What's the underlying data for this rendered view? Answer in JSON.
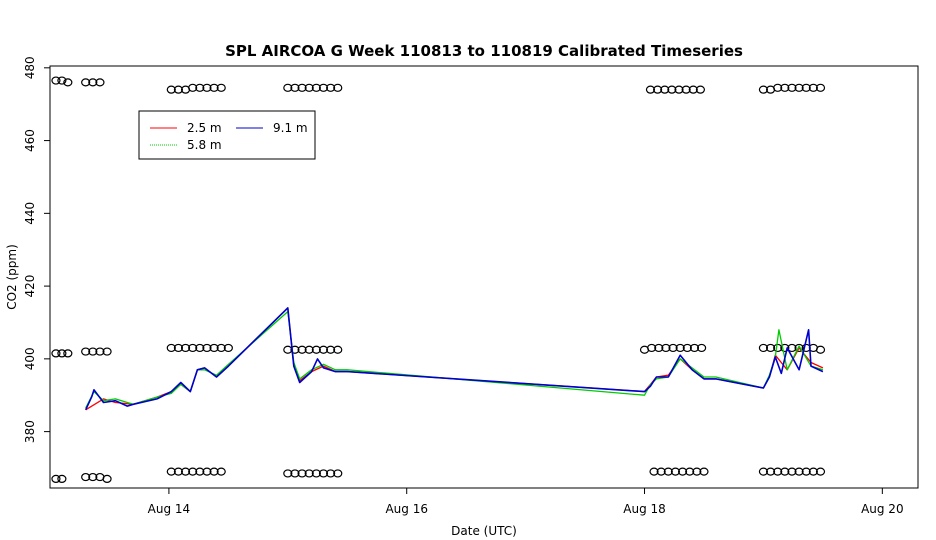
{
  "chart_data": {
    "type": "line",
    "title": "SPL AIRCOA G  Week 110813 to 110819  Calibrated Timeseries",
    "xlabel": "Date (UTC)",
    "ylabel": "CO2 (ppm)",
    "x_unit": "days since Aug 13 00:00 UTC",
    "xlim": [
      0.0,
      7.3
    ],
    "ylim": [
      364.5,
      480.5
    ],
    "x_ticks": [
      {
        "value": 1,
        "label": "Aug 14"
      },
      {
        "value": 3,
        "label": "Aug 16"
      },
      {
        "value": 5,
        "label": "Aug 18"
      },
      {
        "value": 7,
        "label": "Aug 20"
      }
    ],
    "y_ticks": [
      {
        "value": 380,
        "label": "380"
      },
      {
        "value": 400,
        "label": "400"
      },
      {
        "value": 420,
        "label": "420"
      },
      {
        "value": 440,
        "label": "440"
      },
      {
        "value": 460,
        "label": "460"
      },
      {
        "value": 480,
        "label": "480"
      }
    ],
    "legend": {
      "position": "top-left",
      "entries": [
        {
          "name": "2.5 m",
          "color": "#ff0000"
        },
        {
          "name": "5.8 m",
          "color": "#00cc00"
        },
        {
          "name": "9.1 m",
          "color": "#0000cc"
        }
      ]
    },
    "series": [
      {
        "name": "2.5 m",
        "color": "#ff0000",
        "x": [
          0.3,
          0.45,
          0.55,
          0.7,
          0.9,
          1.02,
          1.1,
          1.18,
          1.24,
          1.3,
          1.4,
          1.5,
          2.0,
          2.05,
          2.1,
          2.2,
          2.3,
          2.4,
          2.5,
          5.0,
          5.05,
          5.1,
          5.2,
          5.3,
          5.4,
          5.5,
          5.6,
          6.0,
          6.05,
          6.1,
          6.2,
          6.3,
          6.4,
          6.5
        ],
        "y": [
          386.0,
          389.0,
          388.0,
          387.5,
          389.5,
          391.0,
          393.0,
          391.0,
          397.0,
          397.5,
          395.0,
          398.0,
          414.0,
          398.0,
          394.0,
          396.5,
          398.0,
          396.5,
          396.5,
          391.0,
          393.0,
          395.0,
          395.5,
          400.0,
          397.0,
          394.5,
          394.5,
          392.0,
          395.0,
          401.0,
          397.0,
          403.0,
          399.0,
          397.5
        ]
      },
      {
        "name": "5.8 m",
        "color": "#00cc00",
        "x": [
          0.3,
          0.37,
          0.45,
          0.55,
          0.7,
          0.9,
          1.02,
          1.1,
          1.18,
          1.24,
          1.3,
          1.4,
          1.5,
          2.0,
          2.05,
          2.1,
          2.2,
          2.3,
          2.4,
          2.5,
          5.0,
          5.05,
          5.1,
          5.2,
          5.3,
          5.4,
          5.5,
          5.6,
          6.0,
          6.05,
          6.1,
          6.13,
          6.2,
          6.3,
          6.4,
          6.5
        ],
        "y": [
          386.5,
          391.0,
          388.5,
          389.0,
          387.5,
          389.5,
          390.5,
          393.0,
          391.0,
          397.0,
          397.0,
          395.5,
          398.5,
          413.0,
          399.0,
          394.5,
          397.0,
          398.5,
          397.0,
          397.0,
          390.0,
          393.0,
          394.5,
          395.0,
          400.0,
          397.5,
          395.0,
          395.0,
          392.0,
          395.5,
          400.5,
          408.0,
          397.0,
          403.5,
          398.0,
          397.0
        ]
      },
      {
        "name": "9.1 m",
        "color": "#0000cc",
        "x": [
          0.3,
          0.35,
          0.37,
          0.45,
          0.55,
          0.65,
          0.7,
          0.9,
          1.02,
          1.1,
          1.18,
          1.24,
          1.3,
          1.4,
          1.5,
          2.0,
          2.05,
          2.1,
          2.2,
          2.25,
          2.3,
          2.4,
          2.5,
          5.0,
          5.05,
          5.1,
          5.2,
          5.3,
          5.4,
          5.5,
          5.6,
          6.0,
          6.05,
          6.1,
          6.15,
          6.2,
          6.3,
          6.38,
          6.4,
          6.5
        ],
        "y": [
          386.0,
          389.5,
          391.5,
          388.0,
          388.5,
          387.0,
          387.5,
          389.0,
          391.0,
          393.5,
          391.0,
          397.0,
          397.5,
          395.0,
          398.0,
          414.0,
          398.0,
          393.5,
          396.5,
          400.0,
          397.5,
          396.5,
          396.5,
          391.0,
          392.5,
          395.0,
          395.0,
          401.0,
          397.0,
          394.5,
          394.5,
          392.0,
          395.0,
          400.5,
          396.0,
          403.0,
          397.0,
          408.0,
          398.0,
          396.5
        ]
      },
      {
        "name": "calibration markers",
        "type": "scatter",
        "marker": "circle",
        "points": [
          {
            "x": 0.05,
            "y": 476.5
          },
          {
            "x": 0.1,
            "y": 476.5
          },
          {
            "x": 0.15,
            "y": 476.0
          },
          {
            "x": 0.05,
            "y": 401.5
          },
          {
            "x": 0.1,
            "y": 401.5
          },
          {
            "x": 0.15,
            "y": 401.5
          },
          {
            "x": 0.05,
            "y": 367.0
          },
          {
            "x": 0.1,
            "y": 367.0
          },
          {
            "x": 0.3,
            "y": 476.0
          },
          {
            "x": 0.36,
            "y": 476.0
          },
          {
            "x": 0.42,
            "y": 476.0
          },
          {
            "x": 0.3,
            "y": 402.0
          },
          {
            "x": 0.36,
            "y": 402.0
          },
          {
            "x": 0.42,
            "y": 402.0
          },
          {
            "x": 0.48,
            "y": 402.0
          },
          {
            "x": 0.3,
            "y": 367.5
          },
          {
            "x": 0.36,
            "y": 367.5
          },
          {
            "x": 0.42,
            "y": 367.5
          },
          {
            "x": 0.48,
            "y": 367.0
          },
          {
            "x": 1.02,
            "y": 474.0
          },
          {
            "x": 1.08,
            "y": 474.0
          },
          {
            "x": 1.14,
            "y": 474.0
          },
          {
            "x": 1.2,
            "y": 474.5
          },
          {
            "x": 1.26,
            "y": 474.5
          },
          {
            "x": 1.32,
            "y": 474.5
          },
          {
            "x": 1.38,
            "y": 474.5
          },
          {
            "x": 1.44,
            "y": 474.5
          },
          {
            "x": 1.02,
            "y": 403.0
          },
          {
            "x": 1.08,
            "y": 403.0
          },
          {
            "x": 1.14,
            "y": 403.0
          },
          {
            "x": 1.2,
            "y": 403.0
          },
          {
            "x": 1.26,
            "y": 403.0
          },
          {
            "x": 1.32,
            "y": 403.0
          },
          {
            "x": 1.38,
            "y": 403.0
          },
          {
            "x": 1.44,
            "y": 403.0
          },
          {
            "x": 1.5,
            "y": 403.0
          },
          {
            "x": 1.02,
            "y": 369.0
          },
          {
            "x": 1.08,
            "y": 369.0
          },
          {
            "x": 1.14,
            "y": 369.0
          },
          {
            "x": 1.2,
            "y": 369.0
          },
          {
            "x": 1.26,
            "y": 369.0
          },
          {
            "x": 1.32,
            "y": 369.0
          },
          {
            "x": 1.38,
            "y": 369.0
          },
          {
            "x": 1.44,
            "y": 369.0
          },
          {
            "x": 2.0,
            "y": 474.5
          },
          {
            "x": 2.06,
            "y": 474.5
          },
          {
            "x": 2.12,
            "y": 474.5
          },
          {
            "x": 2.18,
            "y": 474.5
          },
          {
            "x": 2.24,
            "y": 474.5
          },
          {
            "x": 2.3,
            "y": 474.5
          },
          {
            "x": 2.36,
            "y": 474.5
          },
          {
            "x": 2.42,
            "y": 474.5
          },
          {
            "x": 2.0,
            "y": 402.5
          },
          {
            "x": 2.06,
            "y": 402.5
          },
          {
            "x": 2.12,
            "y": 402.5
          },
          {
            "x": 2.18,
            "y": 402.5
          },
          {
            "x": 2.24,
            "y": 402.5
          },
          {
            "x": 2.3,
            "y": 402.5
          },
          {
            "x": 2.36,
            "y": 402.5
          },
          {
            "x": 2.42,
            "y": 402.5
          },
          {
            "x": 2.0,
            "y": 368.5
          },
          {
            "x": 2.06,
            "y": 368.5
          },
          {
            "x": 2.12,
            "y": 368.5
          },
          {
            "x": 2.18,
            "y": 368.5
          },
          {
            "x": 2.24,
            "y": 368.5
          },
          {
            "x": 2.3,
            "y": 368.5
          },
          {
            "x": 2.36,
            "y": 368.5
          },
          {
            "x": 2.42,
            "y": 368.5
          },
          {
            "x": 5.05,
            "y": 474.0
          },
          {
            "x": 5.11,
            "y": 474.0
          },
          {
            "x": 5.17,
            "y": 474.0
          },
          {
            "x": 5.23,
            "y": 474.0
          },
          {
            "x": 5.29,
            "y": 474.0
          },
          {
            "x": 5.35,
            "y": 474.0
          },
          {
            "x": 5.41,
            "y": 474.0
          },
          {
            "x": 5.47,
            "y": 474.0
          },
          {
            "x": 5.0,
            "y": 402.5
          },
          {
            "x": 5.06,
            "y": 403.0
          },
          {
            "x": 5.12,
            "y": 403.0
          },
          {
            "x": 5.18,
            "y": 403.0
          },
          {
            "x": 5.24,
            "y": 403.0
          },
          {
            "x": 5.3,
            "y": 403.0
          },
          {
            "x": 5.36,
            "y": 403.0
          },
          {
            "x": 5.42,
            "y": 403.0
          },
          {
            "x": 5.48,
            "y": 403.0
          },
          {
            "x": 5.08,
            "y": 369.0
          },
          {
            "x": 5.14,
            "y": 369.0
          },
          {
            "x": 5.2,
            "y": 369.0
          },
          {
            "x": 5.26,
            "y": 369.0
          },
          {
            "x": 5.32,
            "y": 369.0
          },
          {
            "x": 5.38,
            "y": 369.0
          },
          {
            "x": 5.44,
            "y": 369.0
          },
          {
            "x": 5.5,
            "y": 369.0
          },
          {
            "x": 6.0,
            "y": 474.0
          },
          {
            "x": 6.06,
            "y": 474.0
          },
          {
            "x": 6.12,
            "y": 474.5
          },
          {
            "x": 6.18,
            "y": 474.5
          },
          {
            "x": 6.24,
            "y": 474.5
          },
          {
            "x": 6.3,
            "y": 474.5
          },
          {
            "x": 6.36,
            "y": 474.5
          },
          {
            "x": 6.42,
            "y": 474.5
          },
          {
            "x": 6.48,
            "y": 474.5
          },
          {
            "x": 6.0,
            "y": 403.0
          },
          {
            "x": 6.06,
            "y": 403.0
          },
          {
            "x": 6.12,
            "y": 403.0
          },
          {
            "x": 6.18,
            "y": 403.0
          },
          {
            "x": 6.24,
            "y": 403.0
          },
          {
            "x": 6.3,
            "y": 403.0
          },
          {
            "x": 6.36,
            "y": 403.0
          },
          {
            "x": 6.42,
            "y": 403.0
          },
          {
            "x": 6.48,
            "y": 402.5
          },
          {
            "x": 6.0,
            "y": 369.0
          },
          {
            "x": 6.06,
            "y": 369.0
          },
          {
            "x": 6.12,
            "y": 369.0
          },
          {
            "x": 6.18,
            "y": 369.0
          },
          {
            "x": 6.24,
            "y": 369.0
          },
          {
            "x": 6.3,
            "y": 369.0
          },
          {
            "x": 6.36,
            "y": 369.0
          },
          {
            "x": 6.42,
            "y": 369.0
          },
          {
            "x": 6.48,
            "y": 369.0
          }
        ]
      }
    ]
  }
}
